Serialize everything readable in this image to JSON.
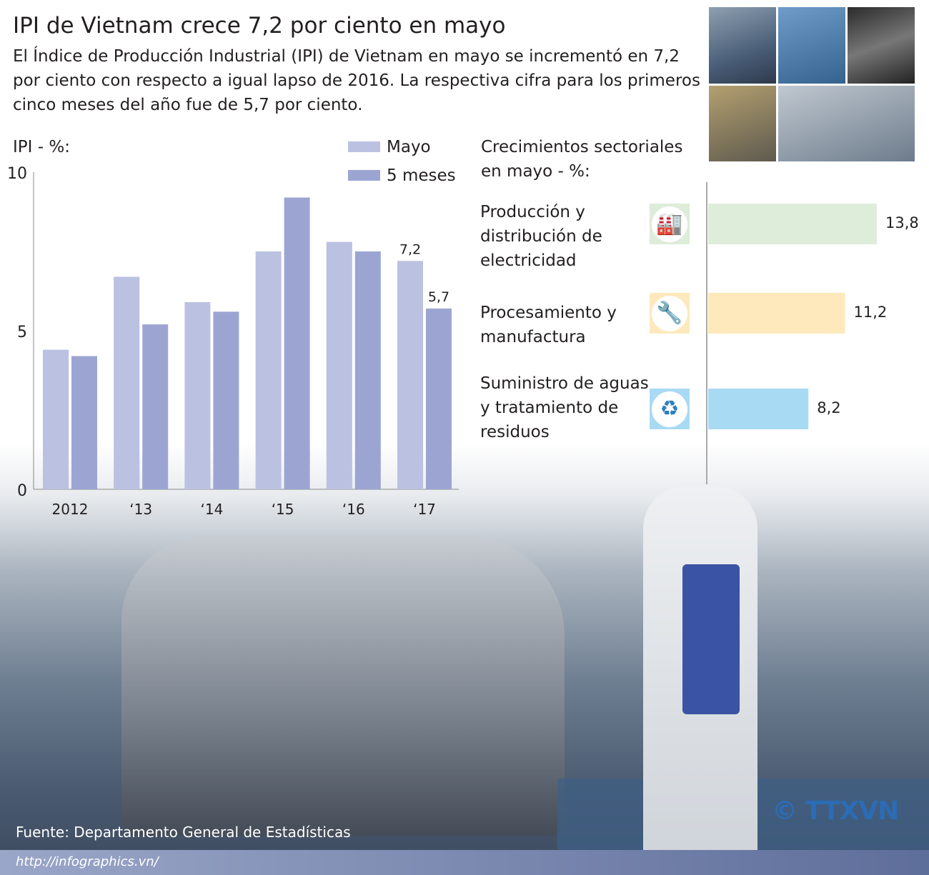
{
  "header": {
    "title": "IPI de Vietnam crece 7,2 por ciento en mayo",
    "description": "El Índice de Producción Industrial (IPI) de Vietnam en mayo se incrementó en 7,2 por ciento con respecto a igual lapso de 2016. La respectiva cifra para los primeros cinco meses del año fue de 5,7 por ciento."
  },
  "chart_data": [
    {
      "type": "bar",
      "title": "IPI - %:",
      "categories": [
        "2012",
        "‘13",
        "‘14",
        "‘15",
        "‘16",
        "‘17"
      ],
      "series": [
        {
          "name": "Mayo",
          "values": [
            4.4,
            6.7,
            5.9,
            7.5,
            7.8,
            7.2
          ],
          "color": "#bac1e1"
        },
        {
          "name": "5 meses",
          "values": [
            4.2,
            5.2,
            5.6,
            9.2,
            7.5,
            5.7
          ],
          "color": "#9ca5d2"
        }
      ],
      "data_labels": {
        "Mayo_2017": "7,2",
        "5meses_2017": "5,7"
      },
      "yticks": [
        "0",
        "5",
        "10"
      ],
      "ylim": [
        0,
        10
      ],
      "legend": "top-right",
      "grid": false
    },
    {
      "type": "bar",
      "orientation": "horizontal",
      "title": "Crecimientos sectoriales\nen mayo - %:",
      "categories": [
        "Producción y\ndistribución de\nelectricidad",
        "Procesamiento y\nmanufactura",
        "Suministro de aguas\ny tratamiento de\nresiduos"
      ],
      "values": [
        13.8,
        11.2,
        8.2
      ],
      "labels": [
        "13,8",
        "11,2",
        "8,2"
      ],
      "colors": [
        "#deecda",
        "#fde9bc",
        "#a9daf4"
      ],
      "icons": [
        "power-plant-icon",
        "tools-icon",
        "recycle-icon"
      ]
    }
  ],
  "footer": {
    "source": "Fuente: Departamento General de Estadísticas",
    "url": "http://infographics.vn/",
    "logo": "© TTXVN"
  }
}
